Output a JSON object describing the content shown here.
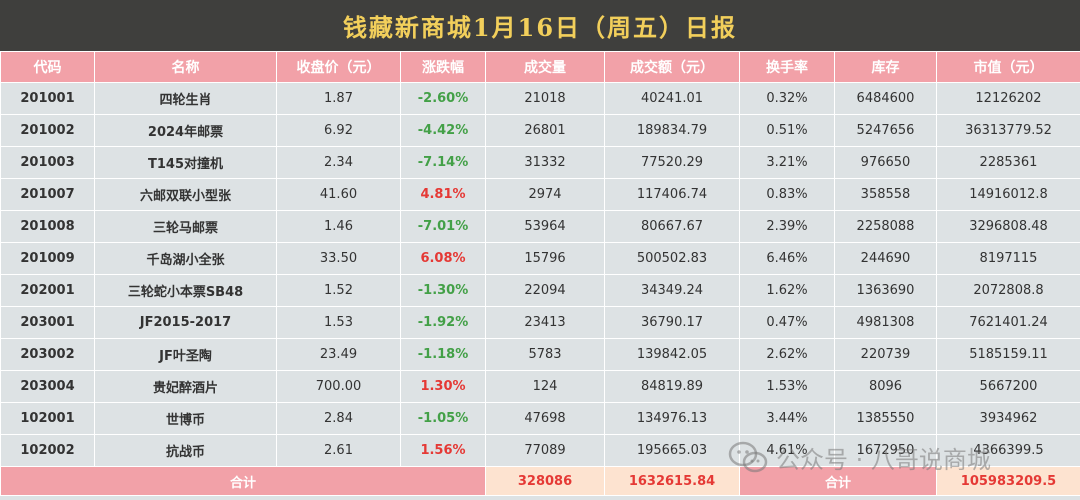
{
  "title": "钱藏新商城1月16日（周五）日报",
  "columns": [
    "代码",
    "名称",
    "收盘价（元）",
    "涨跌幅",
    "成交量",
    "成交额（元）",
    "换手率",
    "库存",
    "市值（元）"
  ],
  "rows": [
    {
      "code": "201001",
      "name": "四轮生肖",
      "close": "1.87",
      "change": "-2.60%",
      "dir": "neg",
      "volume": "21018",
      "amount": "40241.01",
      "turnover": "0.32%",
      "stock": "6484600",
      "cap": "12126202"
    },
    {
      "code": "201002",
      "name": "2024年邮票",
      "close": "6.92",
      "change": "-4.42%",
      "dir": "neg",
      "volume": "26801",
      "amount": "189834.79",
      "turnover": "0.51%",
      "stock": "5247656",
      "cap": "36313779.52"
    },
    {
      "code": "201003",
      "name": "T145对撞机",
      "close": "2.34",
      "change": "-7.14%",
      "dir": "neg",
      "volume": "31332",
      "amount": "77520.29",
      "turnover": "3.21%",
      "stock": "976650",
      "cap": "2285361"
    },
    {
      "code": "201007",
      "name": "六邮双联小型张",
      "close": "41.60",
      "change": "4.81%",
      "dir": "pos",
      "volume": "2974",
      "amount": "117406.74",
      "turnover": "0.83%",
      "stock": "358558",
      "cap": "14916012.8"
    },
    {
      "code": "201008",
      "name": "三轮马邮票",
      "close": "1.46",
      "change": "-7.01%",
      "dir": "neg",
      "volume": "53964",
      "amount": "80667.67",
      "turnover": "2.39%",
      "stock": "2258088",
      "cap": "3296808.48"
    },
    {
      "code": "201009",
      "name": "千岛湖小全张",
      "close": "33.50",
      "change": "6.08%",
      "dir": "pos",
      "volume": "15796",
      "amount": "500502.83",
      "turnover": "6.46%",
      "stock": "244690",
      "cap": "8197115"
    },
    {
      "code": "202001",
      "name": "三轮蛇小本票SB48",
      "close": "1.52",
      "change": "-1.30%",
      "dir": "neg",
      "volume": "22094",
      "amount": "34349.24",
      "turnover": "1.62%",
      "stock": "1363690",
      "cap": "2072808.8"
    },
    {
      "code": "203001",
      "name": "JF2015-2017",
      "close": "1.53",
      "change": "-1.92%",
      "dir": "neg",
      "volume": "23413",
      "amount": "36790.17",
      "turnover": "0.47%",
      "stock": "4981308",
      "cap": "7621401.24"
    },
    {
      "code": "203002",
      "name": "JF叶圣陶",
      "close": "23.49",
      "change": "-1.18%",
      "dir": "neg",
      "volume": "5783",
      "amount": "139842.05",
      "turnover": "2.62%",
      "stock": "220739",
      "cap": "5185159.11"
    },
    {
      "code": "203004",
      "name": "贵妃醉酒片",
      "close": "700.00",
      "change": "1.30%",
      "dir": "pos",
      "volume": "124",
      "amount": "84819.89",
      "turnover": "1.53%",
      "stock": "8096",
      "cap": "5667200"
    },
    {
      "code": "102001",
      "name": "世博币",
      "close": "2.84",
      "change": "-1.05%",
      "dir": "neg",
      "volume": "47698",
      "amount": "134976.13",
      "turnover": "3.44%",
      "stock": "1385550",
      "cap": "3934962"
    },
    {
      "code": "102002",
      "name": "抗战币",
      "close": "2.61",
      "change": "1.56%",
      "dir": "pos",
      "volume": "77089",
      "amount": "195665.03",
      "turnover": "4.61%",
      "stock": "1672950",
      "cap": "4366399.5"
    }
  ],
  "totals": {
    "label": "合计",
    "volume": "328086",
    "amount": "1632615.84",
    "label2": "合计",
    "cap": "105983209.5"
  },
  "watermark": "公众号 · 八哥说商城",
  "colors": {
    "header_bg": "#f2a1a8",
    "title_bg": "#3f3f3d",
    "title_text": "#f2cf5b",
    "row_bg": "#dde2e4",
    "down": "#43a047",
    "up": "#e53935",
    "total_value_bg": "#fde3d0"
  }
}
